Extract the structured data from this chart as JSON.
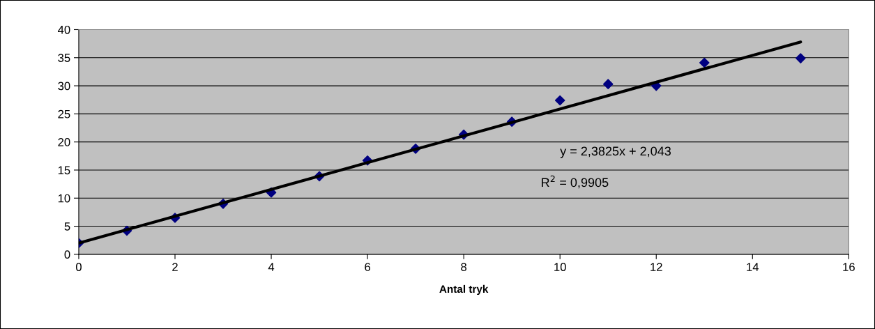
{
  "chart_data": {
    "type": "scatter",
    "xlabel": "Antal tryk",
    "grid": "y",
    "legend": false,
    "xlim": [
      0,
      16
    ],
    "xticks": [
      0,
      2,
      4,
      6,
      8,
      10,
      12,
      14,
      16
    ],
    "ylim": [
      0,
      40
    ],
    "yticks": [
      0,
      5,
      10,
      15,
      20,
      25,
      30,
      35,
      40
    ],
    "series": [
      {
        "marker": "diamond",
        "color": "#000080",
        "x": [
          0,
          1,
          2,
          3,
          4,
          5,
          6,
          7,
          8,
          9,
          10,
          11,
          12,
          13,
          15
        ],
        "values": [
          2,
          4.2,
          6.5,
          9,
          11,
          13.9,
          16.7,
          18.8,
          21.3,
          23.6,
          27.4,
          30.3,
          30,
          34.1,
          34.9
        ]
      },
      {
        "type": "line",
        "marker": "none",
        "color": "#000000",
        "x": [
          0,
          15
        ],
        "values": [
          2.0,
          37.8
        ]
      }
    ],
    "annotations": [
      "y = 2,3825x + 2,043",
      "R$^{2}$ = 0,9905"
    ]
  }
}
